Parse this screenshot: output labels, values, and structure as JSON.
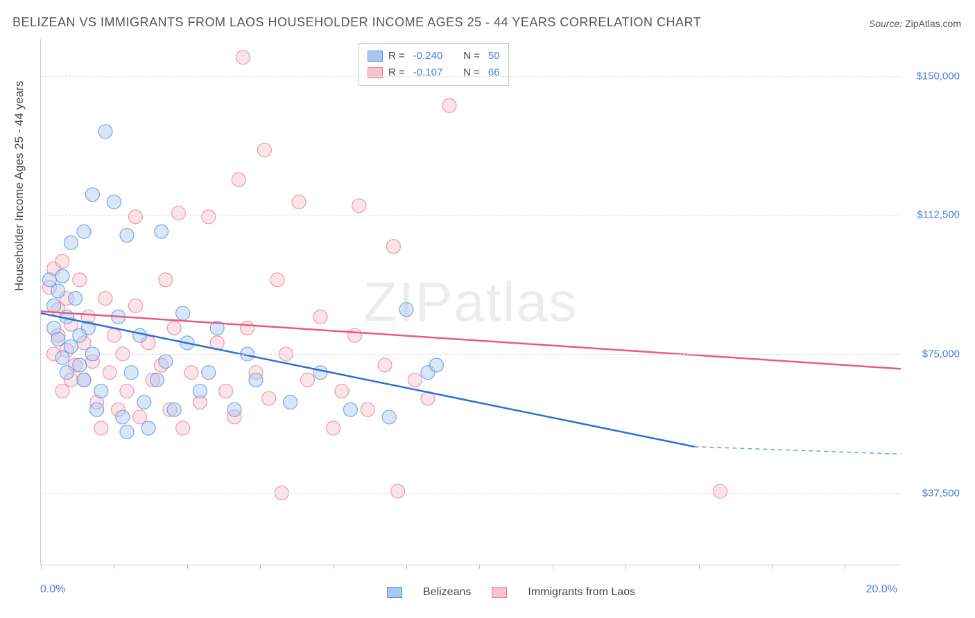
{
  "title": "BELIZEAN VS IMMIGRANTS FROM LAOS HOUSEHOLDER INCOME AGES 25 - 44 YEARS CORRELATION CHART",
  "source_label": "Source:",
  "source_value": "ZipAtlas.com",
  "ylabel": "Householder Income Ages 25 - 44 years",
  "watermark": "ZIPatlas",
  "chart": {
    "type": "scatter-with-regression",
    "background_color": "#ffffff",
    "grid_color": "#dddddd",
    "axis_color": "#cccccc",
    "axis_label_color": "#4a7ee0",
    "text_color": "#444444",
    "title_fontsize": 18,
    "label_fontsize": 17,
    "tick_fontsize": 15,
    "xlim": [
      0,
      20
    ],
    "ylim": [
      18000,
      160000
    ],
    "x_start_label": "0.0%",
    "x_end_label": "20.0%",
    "y_ticks": [
      37500,
      75000,
      112500,
      150000
    ],
    "y_tick_labels": [
      "$37,500",
      "$75,000",
      "$112,500",
      "$150,000"
    ],
    "x_tick_positions": [
      0,
      1.7,
      3.4,
      5.1,
      6.8,
      8.5,
      10.2,
      11.9,
      13.6,
      15.3,
      17.0,
      18.7
    ],
    "marker_radius": 10,
    "marker_opacity": 0.45,
    "line_width": 2.5,
    "series": [
      {
        "name": "Belizeans",
        "color_fill": "#a9c8f0",
        "color_stroke": "#5b94e2",
        "line_color": "#2b6fd8",
        "R": "-0.240",
        "N": "50",
        "regression": {
          "x0": 0,
          "y0": 86000,
          "x1_solid": 15.2,
          "y1_solid": 50000,
          "x1_dash": 20,
          "y1_dash": 48000
        },
        "points": [
          [
            0.2,
            95000
          ],
          [
            0.3,
            88000
          ],
          [
            0.3,
            82000
          ],
          [
            0.4,
            92000
          ],
          [
            0.4,
            79000
          ],
          [
            0.5,
            74000
          ],
          [
            0.5,
            96000
          ],
          [
            0.6,
            85000
          ],
          [
            0.6,
            70000
          ],
          [
            0.7,
            105000
          ],
          [
            0.7,
            77000
          ],
          [
            0.8,
            90000
          ],
          [
            0.9,
            72000
          ],
          [
            1.0,
            108000
          ],
          [
            1.0,
            68000
          ],
          [
            1.1,
            82000
          ],
          [
            1.2,
            75000
          ],
          [
            1.3,
            60000
          ],
          [
            1.4,
            65000
          ],
          [
            1.5,
            135000
          ],
          [
            1.7,
            116000
          ],
          [
            1.8,
            85000
          ],
          [
            1.9,
            58000
          ],
          [
            2.0,
            107000
          ],
          [
            2.1,
            70000
          ],
          [
            2.3,
            80000
          ],
          [
            2.4,
            62000
          ],
          [
            2.5,
            55000
          ],
          [
            2.7,
            68000
          ],
          [
            2.8,
            108000
          ],
          [
            2.9,
            73000
          ],
          [
            3.1,
            60000
          ],
          [
            3.3,
            86000
          ],
          [
            3.4,
            78000
          ],
          [
            3.7,
            65000
          ],
          [
            3.9,
            70000
          ],
          [
            4.1,
            82000
          ],
          [
            4.5,
            60000
          ],
          [
            4.8,
            75000
          ],
          [
            5.0,
            68000
          ],
          [
            5.8,
            62000
          ],
          [
            6.5,
            70000
          ],
          [
            7.2,
            60000
          ],
          [
            8.1,
            58000
          ],
          [
            8.5,
            87000
          ],
          [
            9.0,
            70000
          ],
          [
            9.2,
            72000
          ],
          [
            1.2,
            118000
          ],
          [
            2.0,
            54000
          ],
          [
            0.9,
            80000
          ]
        ]
      },
      {
        "name": "Immigrants from Laos",
        "color_fill": "#f6c3ce",
        "color_stroke": "#ec7f9a",
        "line_color": "#e85a84",
        "R": "-0.107",
        "N": "66",
        "regression": {
          "x0": 0,
          "y0": 86500,
          "x1_solid": 20,
          "y1_solid": 71000
        },
        "points": [
          [
            0.2,
            93000
          ],
          [
            0.3,
            98000
          ],
          [
            0.4,
            87000
          ],
          [
            0.4,
            80000
          ],
          [
            0.5,
            100000
          ],
          [
            0.6,
            76000
          ],
          [
            0.6,
            90000
          ],
          [
            0.7,
            83000
          ],
          [
            0.8,
            72000
          ],
          [
            0.9,
            95000
          ],
          [
            1.0,
            78000
          ],
          [
            1.0,
            68000
          ],
          [
            1.1,
            85000
          ],
          [
            1.2,
            73000
          ],
          [
            1.3,
            62000
          ],
          [
            1.5,
            90000
          ],
          [
            1.6,
            70000
          ],
          [
            1.7,
            80000
          ],
          [
            1.9,
            75000
          ],
          [
            2.0,
            65000
          ],
          [
            2.2,
            88000
          ],
          [
            2.3,
            58000
          ],
          [
            2.5,
            78000
          ],
          [
            2.6,
            68000
          ],
          [
            2.8,
            72000
          ],
          [
            3.0,
            60000
          ],
          [
            3.1,
            82000
          ],
          [
            3.2,
            113000
          ],
          [
            3.5,
            70000
          ],
          [
            3.7,
            62000
          ],
          [
            3.9,
            112000
          ],
          [
            4.1,
            78000
          ],
          [
            4.3,
            65000
          ],
          [
            4.5,
            58000
          ],
          [
            4.6,
            122000
          ],
          [
            4.7,
            155000
          ],
          [
            5.0,
            70000
          ],
          [
            5.2,
            130000
          ],
          [
            5.3,
            63000
          ],
          [
            5.6,
            37500
          ],
          [
            5.7,
            75000
          ],
          [
            6.0,
            116000
          ],
          [
            6.2,
            68000
          ],
          [
            6.5,
            85000
          ],
          [
            7.0,
            65000
          ],
          [
            7.3,
            80000
          ],
          [
            7.4,
            115000
          ],
          [
            7.6,
            60000
          ],
          [
            8.0,
            72000
          ],
          [
            8.2,
            104000
          ],
          [
            8.3,
            38000
          ],
          [
            8.7,
            68000
          ],
          [
            9.0,
            63000
          ],
          [
            9.5,
            142000
          ],
          [
            2.2,
            112000
          ],
          [
            1.4,
            55000
          ],
          [
            0.5,
            65000
          ],
          [
            3.3,
            55000
          ],
          [
            4.8,
            82000
          ],
          [
            5.5,
            95000
          ],
          [
            6.8,
            55000
          ],
          [
            2.9,
            95000
          ],
          [
            1.8,
            60000
          ],
          [
            15.8,
            38000
          ],
          [
            0.3,
            75000
          ],
          [
            0.7,
            68000
          ]
        ]
      }
    ],
    "bottom_legend": [
      "Belizeans",
      "Immigrants from Laos"
    ]
  }
}
